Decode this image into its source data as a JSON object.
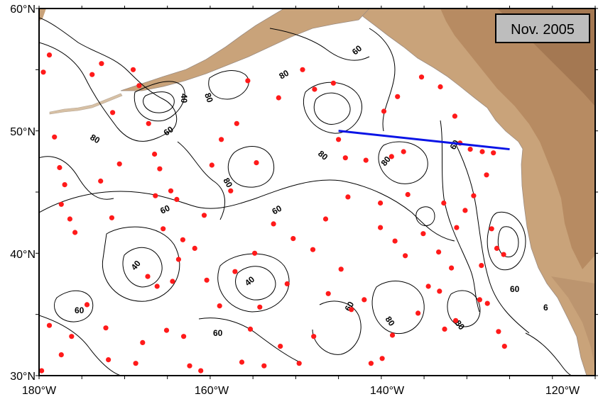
{
  "date_label": "Nov. 2005",
  "lat_labels": [
    "60°N",
    "50°N",
    "40°N",
    "30°N"
  ],
  "lon_labels": [
    "180°W",
    "160°W",
    "140°W",
    "120°W"
  ],
  "contour_labels": [
    "60",
    "80",
    "40",
    "80",
    "60",
    "80",
    "80",
    "80",
    "60",
    "60",
    "80",
    "60",
    "40",
    "40",
    "60",
    "60",
    "80",
    "80",
    "60",
    "6"
  ],
  "colors": {
    "land": "#c9a37a",
    "land_dark": "#a8794f",
    "ocean": "#ffffff",
    "contour": "#000000",
    "floats": "#ff1a1a",
    "section_line": "#0a14e6",
    "date_box": "#bdbdbd"
  },
  "section_line": {
    "from": {
      "lon": -145,
      "lat": 50
    },
    "to": {
      "lon": -125,
      "lat": 48.5
    }
  },
  "floats": [
    [
      -179.5,
      54.8
    ],
    [
      -178.8,
      56.2
    ],
    [
      -178.2,
      49.5
    ],
    [
      -177.6,
      47.0
    ],
    [
      -177.0,
      45.6
    ],
    [
      -176.4,
      42.8
    ],
    [
      -175.8,
      41.7
    ],
    [
      -177.4,
      44.0
    ],
    [
      -173.8,
      54.6
    ],
    [
      -172.7,
      55.5
    ],
    [
      -171.4,
      51.5
    ],
    [
      -172.8,
      45.9
    ],
    [
      -170.6,
      47.3
    ],
    [
      -171.5,
      42.9
    ],
    [
      -169.0,
      55.0
    ],
    [
      -168.3,
      53.7
    ],
    [
      -167.2,
      50.6
    ],
    [
      -166.5,
      48.1
    ],
    [
      -165.9,
      46.9
    ],
    [
      -166.4,
      44.7
    ],
    [
      -164.6,
      45.1
    ],
    [
      -163.9,
      44.4
    ],
    [
      -165.5,
      42.0
    ],
    [
      -163.2,
      41.1
    ],
    [
      -167.3,
      38.1
    ],
    [
      -166.2,
      37.3
    ],
    [
      -164.4,
      37.7
    ],
    [
      -163.7,
      39.5
    ],
    [
      -161.8,
      40.4
    ],
    [
      -165.1,
      33.7
    ],
    [
      -163.1,
      33.2
    ],
    [
      -167.9,
      32.7
    ],
    [
      -168.7,
      31.0
    ],
    [
      -171.9,
      31.3
    ],
    [
      -176.2,
      33.2
    ],
    [
      -178.8,
      34.1
    ],
    [
      -174.4,
      35.8
    ],
    [
      -177.4,
      31.7
    ],
    [
      -179.7,
      30.4
    ],
    [
      -172.2,
      33.9
    ],
    [
      -160.7,
      43.1
    ],
    [
      -159.8,
      47.2
    ],
    [
      -158.7,
      49.3
    ],
    [
      -157.6,
      45.1
    ],
    [
      -156.9,
      50.6
    ],
    [
      -155.6,
      54.1
    ],
    [
      -154.6,
      47.4
    ],
    [
      -152.0,
      52.7
    ],
    [
      -149.2,
      55.0
    ],
    [
      -147.8,
      53.4
    ],
    [
      -145.6,
      53.9
    ],
    [
      -145.0,
      49.3
    ],
    [
      -144.2,
      47.8
    ],
    [
      -143.9,
      44.6
    ],
    [
      -141.8,
      47.6
    ],
    [
      -139.7,
      51.6
    ],
    [
      -138.1,
      52.8
    ],
    [
      -137.4,
      48.3
    ],
    [
      -138.8,
      47.9
    ],
    [
      -140.1,
      44.1
    ],
    [
      -140.1,
      42.1
    ],
    [
      -135.3,
      54.4
    ],
    [
      -133.1,
      53.6
    ],
    [
      -131.4,
      51.2
    ],
    [
      -130.8,
      49.0
    ],
    [
      -129.6,
      48.5
    ],
    [
      -128.2,
      48.3
    ],
    [
      -126.9,
      48.2
    ],
    [
      -127.7,
      46.4
    ],
    [
      -129.2,
      44.7
    ],
    [
      -130.2,
      43.5
    ],
    [
      -131.2,
      42.1
    ],
    [
      -131.8,
      38.8
    ],
    [
      -128.3,
      39.0
    ],
    [
      -127.1,
      42.0
    ],
    [
      -126.5,
      40.4
    ],
    [
      -125.7,
      39.9
    ],
    [
      -128.5,
      36.2
    ],
    [
      -127.6,
      35.9
    ],
    [
      -126.3,
      33.6
    ],
    [
      -125.6,
      32.4
    ],
    [
      -134.5,
      37.3
    ],
    [
      -133.2,
      36.9
    ],
    [
      -135.7,
      35.1
    ],
    [
      -132.6,
      33.8
    ],
    [
      -131.3,
      34.5
    ],
    [
      -138.7,
      33.3
    ],
    [
      -139.9,
      31.4
    ],
    [
      -141.2,
      31.0
    ],
    [
      -143.5,
      35.4
    ],
    [
      -146.2,
      36.7
    ],
    [
      -147.9,
      33.2
    ],
    [
      -149.6,
      31.0
    ],
    [
      -151.8,
      32.4
    ],
    [
      -153.7,
      30.8
    ],
    [
      -155.3,
      33.8
    ],
    [
      -157.1,
      38.5
    ],
    [
      -158.9,
      35.7
    ],
    [
      -160.4,
      37.8
    ],
    [
      -161.1,
      30.4
    ],
    [
      -162.4,
      30.8
    ],
    [
      -156.3,
      31.1
    ],
    [
      -154.2,
      35.6
    ],
    [
      -151.0,
      37.5
    ],
    [
      -150.3,
      41.2
    ],
    [
      -148.0,
      40.3
    ],
    [
      -146.5,
      42.8
    ],
    [
      -152.6,
      42.4
    ],
    [
      -154.8,
      40.0
    ],
    [
      -144.7,
      38.7
    ],
    [
      -142.0,
      36.2
    ],
    [
      -137.2,
      39.8
    ],
    [
      -135.1,
      41.6
    ],
    [
      -133.3,
      40.1
    ],
    [
      -132.7,
      44.1
    ],
    [
      -136.9,
      44.8
    ],
    [
      -138.4,
      41.0
    ]
  ]
}
